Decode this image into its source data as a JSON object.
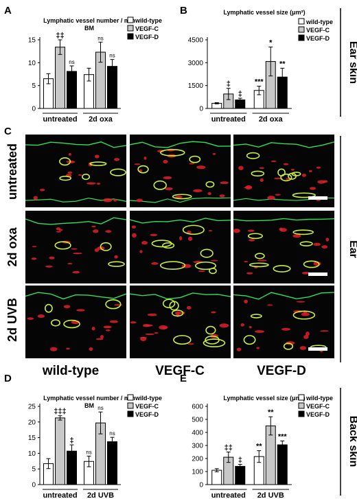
{
  "panel_letters": [
    "A",
    "B",
    "C",
    "D",
    "E"
  ],
  "legend_labels": [
    "wild-type",
    "VEGF-C",
    "VEGF-D"
  ],
  "colors": {
    "wild-type": "#ffffff",
    "VEGF-C": "#c8c8c8",
    "VEGF-D": "#000000"
  },
  "side_labels": {
    "ear_skin": "Ear skin",
    "ear": "Ear",
    "back_skin": "Back skin"
  },
  "micrographs": {
    "row_labels": [
      "untreated",
      "2d oxa",
      "2d UVB"
    ],
    "col_labels": [
      "wild-type",
      "VEGF-C",
      "VEGF-D"
    ]
  },
  "chart_data": [
    {
      "panel": "A",
      "type": "bar",
      "title": "Lymphatic vessel number / mm BM",
      "categories": [
        "untreated",
        "2d oxa"
      ],
      "series": [
        {
          "name": "wild-type",
          "values": [
            6.5,
            7.4
          ],
          "errors": [
            1.1,
            1.4
          ]
        },
        {
          "name": "VEGF-C",
          "values": [
            13.4,
            12.3
          ],
          "errors": [
            1.6,
            2.2
          ]
        },
        {
          "name": "VEGF-D",
          "values": [
            8.1,
            9.2
          ],
          "errors": [
            1.2,
            1.5
          ]
        }
      ],
      "annotations": [
        [
          "",
          "‡‡",
          "ns"
        ],
        [
          "",
          "ns",
          "ns"
        ]
      ],
      "yticks": [
        0,
        5,
        10,
        15
      ],
      "ylim": [
        0,
        15
      ]
    },
    {
      "panel": "B",
      "type": "bar",
      "title": "Lymphatic vessel size (μm²)",
      "categories": [
        "untreated",
        "2d oxa"
      ],
      "series": [
        {
          "name": "wild-type",
          "values": [
            340,
            1180
          ],
          "errors": [
            40,
            280
          ]
        },
        {
          "name": "VEGF-C",
          "values": [
            950,
            3080
          ],
          "errors": [
            370,
            950
          ]
        },
        {
          "name": "VEGF-D",
          "values": [
            560,
            2060
          ],
          "errors": [
            110,
            580
          ]
        }
      ],
      "annotations": [
        [
          "",
          "‡",
          "‡"
        ],
        [
          "***",
          "*",
          "**"
        ]
      ],
      "yticks": [
        0,
        1500,
        3000,
        4500
      ],
      "ylim": [
        0,
        4500
      ]
    },
    {
      "panel": "D",
      "type": "bar",
      "title": "Lymphatic vessel number / mm BM",
      "categories": [
        "untreated",
        "2d UVB"
      ],
      "series": [
        {
          "name": "wild-type",
          "values": [
            6.7,
            7.4
          ],
          "errors": [
            1.6,
            1.7
          ]
        },
        {
          "name": "VEGF-C",
          "values": [
            21.3,
            19.7
          ],
          "errors": [
            0.7,
            3.5
          ]
        },
        {
          "name": "VEGF-D",
          "values": [
            10.7,
            13.7
          ],
          "errors": [
            2.0,
            1.4
          ]
        }
      ],
      "annotations": [
        [
          "",
          "‡‡‡",
          "‡"
        ],
        [
          "ns",
          "ns",
          "ns"
        ]
      ],
      "yticks": [
        0,
        5,
        10,
        15,
        20,
        25
      ],
      "ylim": [
        0,
        25
      ]
    },
    {
      "panel": "E",
      "type": "bar",
      "title": "Lymphatic vessel size (μm²)",
      "categories": [
        "untreated",
        "2d UVB"
      ],
      "series": [
        {
          "name": "wild-type",
          "values": [
            110,
            215
          ],
          "errors": [
            12,
            45
          ]
        },
        {
          "name": "VEGF-C",
          "values": [
            210,
            450
          ],
          "errors": [
            40,
            70
          ]
        },
        {
          "name": "VEGF-D",
          "values": [
            140,
            305
          ],
          "errors": [
            15,
            30
          ]
        }
      ],
      "annotations": [
        [
          "",
          "‡‡",
          "‡"
        ],
        [
          "**",
          "**",
          "***"
        ]
      ],
      "yticks": [
        0,
        100,
        200,
        300,
        400,
        500,
        600
      ],
      "ylim": [
        0,
        600
      ]
    }
  ]
}
